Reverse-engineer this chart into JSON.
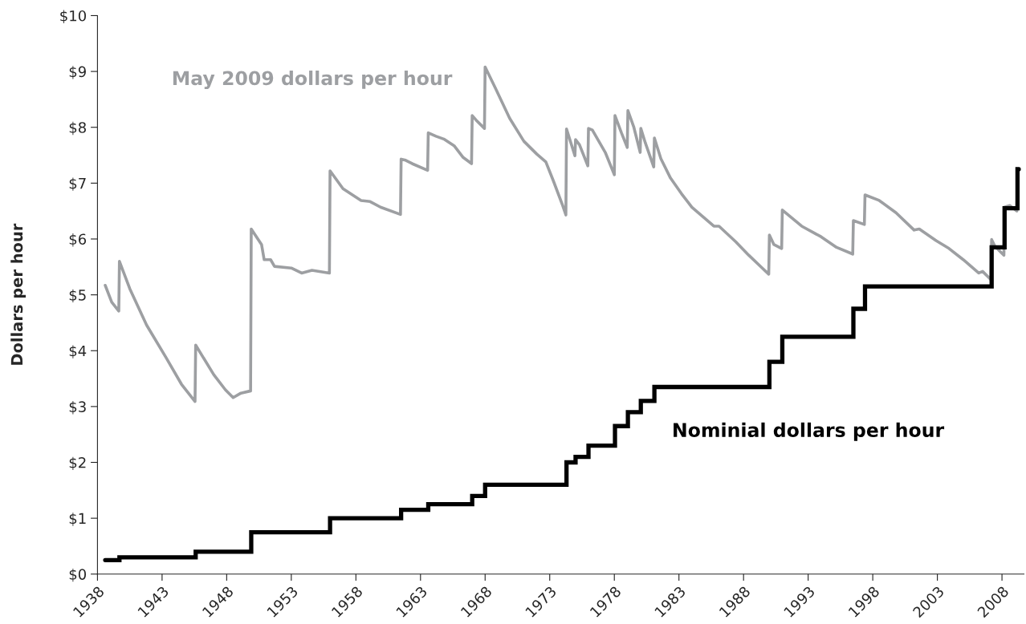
{
  "chart_data": {
    "type": "line",
    "ylabel": "Dollars per hour",
    "xlim": [
      1938,
      2009.7
    ],
    "ylim": [
      0,
      10
    ],
    "xticks": [
      1938,
      1943,
      1948,
      1953,
      1958,
      1963,
      1968,
      1973,
      1978,
      1983,
      1988,
      1993,
      1998,
      2003,
      2008
    ],
    "yticks": [
      {
        "value": 0,
        "label": "$0"
      },
      {
        "value": 1,
        "label": "$1"
      },
      {
        "value": 2,
        "label": "$2"
      },
      {
        "value": 3,
        "label": "$3"
      },
      {
        "value": 4,
        "label": "$4"
      },
      {
        "value": 5,
        "label": "$5"
      },
      {
        "value": 6,
        "label": "$6"
      },
      {
        "value": 7,
        "label": "$7"
      },
      {
        "value": 8,
        "label": "$8"
      },
      {
        "value": 9,
        "label": "$9"
      },
      {
        "value": 10,
        "label": "$10"
      }
    ],
    "grid": false,
    "legend": false,
    "marker": "none",
    "line_style": "solid",
    "series": [
      {
        "name": "May 2009 dollars per hour",
        "color": "#9d9fa2",
        "x": [
          1938.6,
          1939.1,
          1939.65,
          1939.7,
          1940.5,
          1941.8,
          1943.3,
          1944.5,
          1945.55,
          1945.6,
          1947.0,
          1947.9,
          1948.5,
          1949.1,
          1949.85,
          1949.9,
          1950.7,
          1950.9,
          1951.4,
          1951.7,
          1953.0,
          1953.8,
          1954.6,
          1955.95,
          1956.0,
          1957.0,
          1958.4,
          1959.1,
          1959.9,
          1961.45,
          1961.5,
          1961.85,
          1962.35,
          1963.55,
          1963.6,
          1964.2,
          1964.8,
          1965.6,
          1966.3,
          1966.95,
          1967.0,
          1967.3,
          1967.95,
          1968.0,
          1968.8,
          1969.9,
          1971.0,
          1972.0,
          1972.7,
          1973.3,
          1974.0,
          1974.25,
          1974.3,
          1974.95,
          1975.0,
          1975.3,
          1975.95,
          1976.0,
          1976.3,
          1977.3,
          1978.0,
          1978.05,
          1978.55,
          1979.0,
          1979.05,
          1979.5,
          1980.0,
          1980.05,
          1980.4,
          1981.05,
          1981.1,
          1981.6,
          1982.35,
          1983.2,
          1984.0,
          1985.7,
          1986.1,
          1987.4,
          1988.4,
          1989.4,
          1989.95,
          1990.0,
          1990.35,
          1990.95,
          1991.0,
          1992.5,
          1994.0,
          1995.2,
          1996.45,
          1996.5,
          1997.35,
          1997.4,
          1998.5,
          1999.8,
          2001.2,
          2001.6,
          2002.9,
          2003.9,
          2005.0,
          2006.2,
          2006.5,
          2007.15,
          2007.2,
          2007.45,
          2008.15,
          2008.2,
          2008.6,
          2009.15,
          2009.2,
          2009.3
        ],
        "values": [
          5.17,
          4.87,
          4.71,
          5.6,
          5.11,
          4.46,
          3.88,
          3.4,
          3.09,
          4.1,
          3.57,
          3.3,
          3.16,
          3.24,
          3.28,
          6.18,
          5.9,
          5.63,
          5.63,
          5.51,
          5.48,
          5.39,
          5.44,
          5.39,
          7.22,
          6.9,
          6.69,
          6.67,
          6.57,
          6.44,
          7.43,
          7.41,
          7.35,
          7.23,
          7.9,
          7.84,
          7.79,
          7.67,
          7.46,
          7.35,
          8.21,
          8.13,
          7.98,
          9.08,
          8.7,
          8.16,
          7.75,
          7.52,
          7.38,
          7.03,
          6.6,
          6.43,
          7.97,
          7.49,
          7.78,
          7.69,
          7.31,
          7.98,
          7.95,
          7.55,
          7.15,
          8.21,
          7.9,
          7.64,
          8.3,
          8.01,
          7.55,
          7.98,
          7.72,
          7.29,
          7.81,
          7.44,
          7.09,
          6.81,
          6.57,
          6.23,
          6.23,
          5.95,
          5.71,
          5.49,
          5.37,
          6.07,
          5.9,
          5.83,
          6.52,
          6.23,
          6.04,
          5.85,
          5.73,
          6.33,
          6.26,
          6.79,
          6.69,
          6.47,
          6.16,
          6.18,
          5.97,
          5.83,
          5.63,
          5.39,
          5.42,
          5.27,
          5.99,
          5.87,
          5.71,
          6.57,
          6.6,
          6.5,
          7.24,
          7.24
        ]
      },
      {
        "name": "Nominial dollars per hour",
        "color": "#000000",
        "type": "step",
        "x": [
          1938.6,
          1939.7,
          1945.6,
          1949.9,
          1956.0,
          1961.5,
          1963.6,
          1967.0,
          1968.0,
          1974.3,
          1975.0,
          1976.0,
          1978.05,
          1979.05,
          1980.05,
          1981.1,
          1990.0,
          1991.0,
          1996.5,
          1997.4,
          2007.2,
          2008.2,
          2009.2,
          2009.3
        ],
        "values": [
          0.25,
          0.3,
          0.4,
          0.75,
          1.0,
          1.15,
          1.25,
          1.4,
          1.6,
          2.0,
          2.1,
          2.3,
          2.65,
          2.9,
          3.1,
          3.35,
          3.8,
          4.25,
          4.75,
          5.15,
          5.85,
          6.55,
          7.25,
          7.25
        ]
      }
    ]
  }
}
